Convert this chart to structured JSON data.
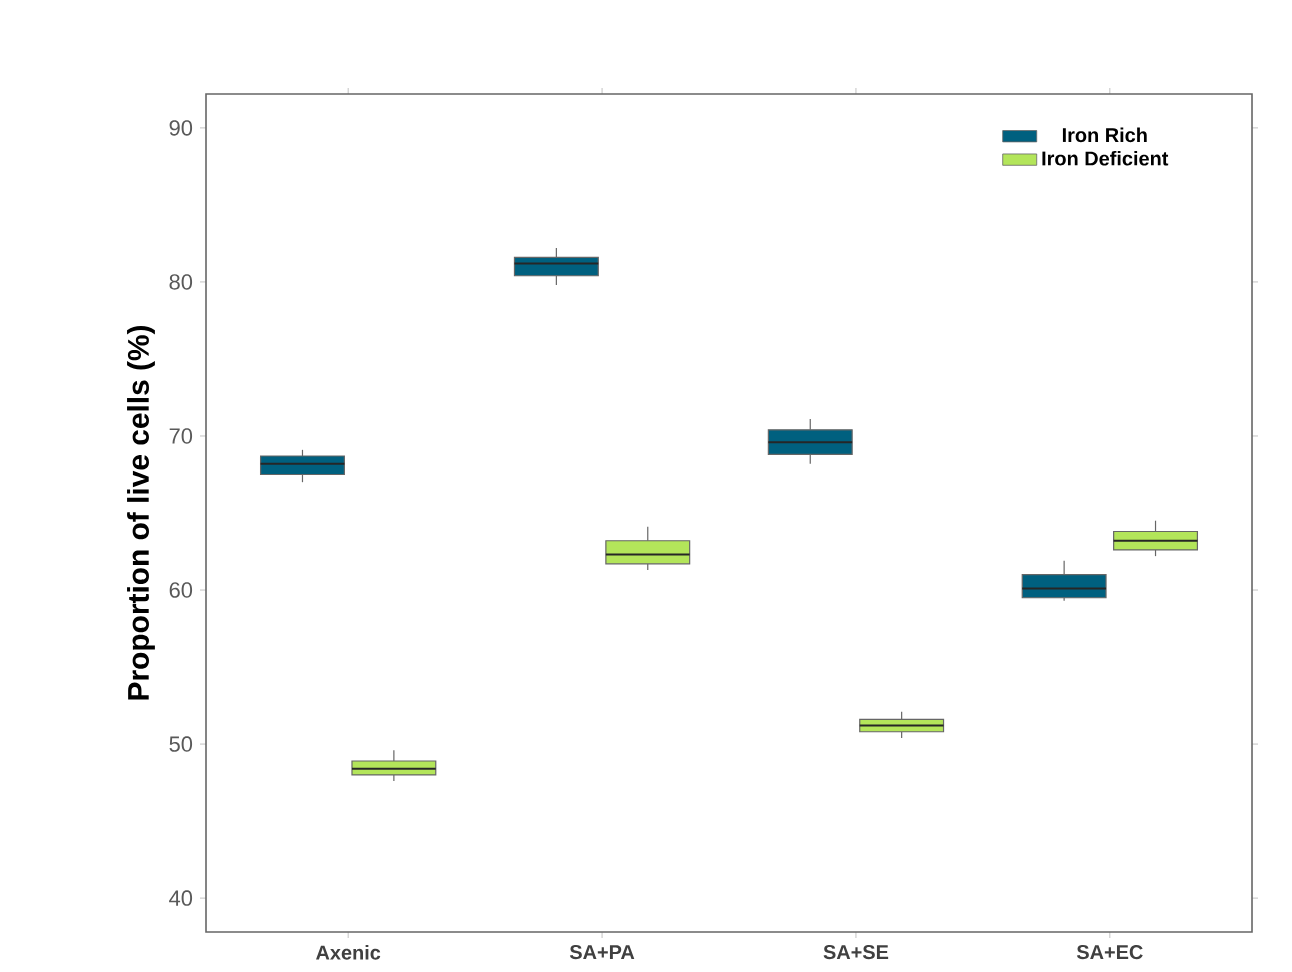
{
  "chart_data": {
    "type": "box",
    "ylabel": "Proportion of live cells (%)",
    "categories": [
      "Axenic",
      "SA+PA",
      "SA+SE",
      "SA+EC"
    ],
    "series": [
      {
        "name": "Iron Rich",
        "color": "#00607f",
        "boxes": [
          {
            "low": 67.0,
            "q1": 67.5,
            "median": 68.2,
            "q3": 68.7,
            "high": 69.1
          },
          {
            "low": 79.8,
            "q1": 80.4,
            "median": 81.2,
            "q3": 81.6,
            "high": 82.2
          },
          {
            "low": 68.2,
            "q1": 68.8,
            "median": 69.6,
            "q3": 70.4,
            "high": 71.1
          },
          {
            "low": 59.3,
            "q1": 59.5,
            "median": 60.1,
            "q3": 61.0,
            "high": 61.9
          }
        ]
      },
      {
        "name": "Iron Deficient",
        "color": "#b3e55a",
        "boxes": [
          {
            "low": 47.6,
            "q1": 48.0,
            "median": 48.4,
            "q3": 48.9,
            "high": 49.6
          },
          {
            "low": 61.3,
            "q1": 61.7,
            "median": 62.3,
            "q3": 63.2,
            "high": 64.1
          },
          {
            "low": 50.4,
            "q1": 50.8,
            "median": 51.2,
            "q3": 51.6,
            "high": 52.1
          },
          {
            "low": 62.2,
            "q1": 62.6,
            "median": 63.2,
            "q3": 63.8,
            "high": 64.5
          }
        ]
      }
    ],
    "ylim": [
      37.8,
      92.2
    ],
    "yticks": [
      40,
      50,
      60,
      70,
      80,
      90
    ],
    "grid": false,
    "legend": "top right"
  }
}
